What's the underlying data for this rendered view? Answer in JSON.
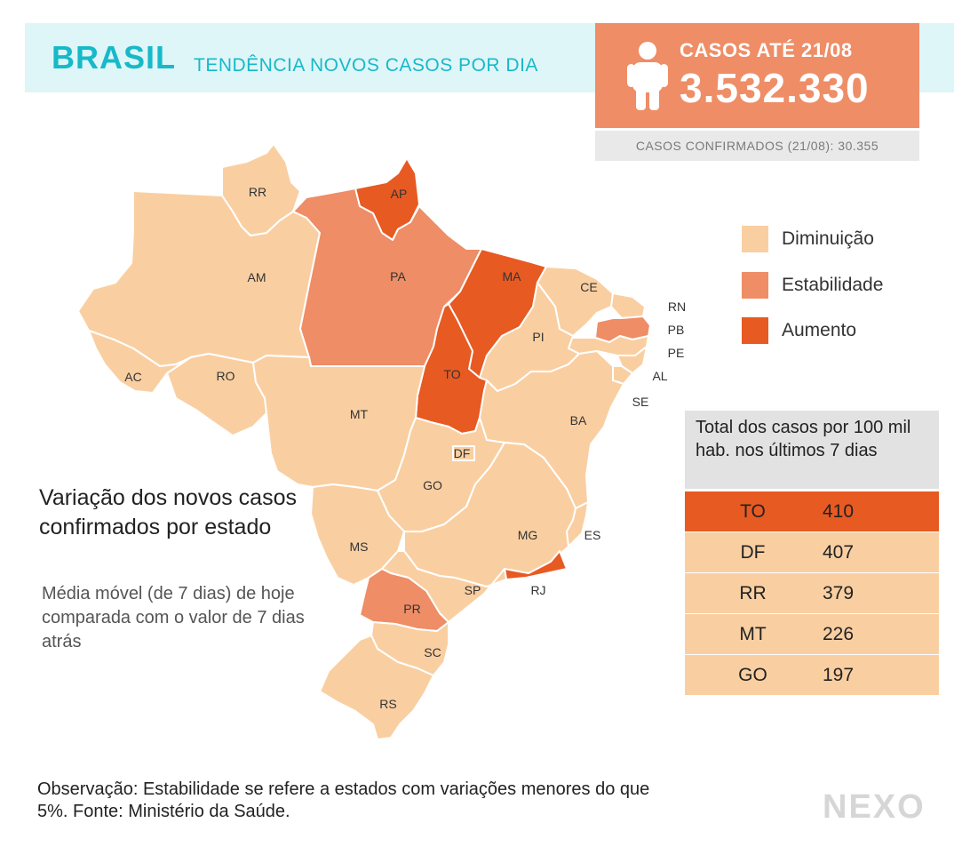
{
  "header": {
    "brand": "BRASIL",
    "subtitle": "TENDÊNCIA NOVOS CASOS POR DIA",
    "cases_label": "CASOS ATÉ 21/08",
    "cases_value": "3.532.330",
    "confirmed_text": "CASOS CONFIRMADOS (21/08): 30.355"
  },
  "colors": {
    "diminuicao": "#f9cfa2",
    "estabilidade": "#ee8d66",
    "aumento": "#e75a22",
    "header_band": "#dff6f8",
    "brand": "#17b9c9",
    "border": "#ffffff"
  },
  "legend": [
    {
      "label": "Diminuição",
      "color": "#f9cfa2"
    },
    {
      "label": "Estabilidade",
      "color": "#ee8d66"
    },
    {
      "label": "Aumento",
      "color": "#e75a22"
    }
  ],
  "map": {
    "states": [
      {
        "uf": "RR",
        "status": "diminuicao"
      },
      {
        "uf": "AP",
        "status": "aumento"
      },
      {
        "uf": "AM",
        "status": "diminuicao"
      },
      {
        "uf": "PA",
        "status": "estabilidade"
      },
      {
        "uf": "MA",
        "status": "aumento"
      },
      {
        "uf": "CE",
        "status": "diminuicao"
      },
      {
        "uf": "RN",
        "status": "diminuicao"
      },
      {
        "uf": "PB",
        "status": "estabilidade"
      },
      {
        "uf": "PE",
        "status": "diminuicao"
      },
      {
        "uf": "AL",
        "status": "diminuicao"
      },
      {
        "uf": "SE",
        "status": "diminuicao"
      },
      {
        "uf": "PI",
        "status": "diminuicao"
      },
      {
        "uf": "AC",
        "status": "diminuicao"
      },
      {
        "uf": "RO",
        "status": "diminuicao"
      },
      {
        "uf": "TO",
        "status": "aumento"
      },
      {
        "uf": "MT",
        "status": "diminuicao"
      },
      {
        "uf": "BA",
        "status": "diminuicao"
      },
      {
        "uf": "DF",
        "status": "diminuicao"
      },
      {
        "uf": "GO",
        "status": "diminuicao"
      },
      {
        "uf": "MS",
        "status": "diminuicao"
      },
      {
        "uf": "MG",
        "status": "diminuicao"
      },
      {
        "uf": "ES",
        "status": "diminuicao"
      },
      {
        "uf": "SP",
        "status": "diminuicao"
      },
      {
        "uf": "RJ",
        "status": "aumento"
      },
      {
        "uf": "PR",
        "status": "estabilidade"
      },
      {
        "uf": "SC",
        "status": "diminuicao"
      },
      {
        "uf": "RS",
        "status": "diminuicao"
      }
    ]
  },
  "variation": {
    "title": "Variação dos novos casos confirmados por estado",
    "description": "Média móvel (de 7 dias) de hoje comparada com o valor de 7 dias atrás"
  },
  "table": {
    "header": "Total dos casos por 100 mil hab. nos últimos 7 dias",
    "rows": [
      {
        "uf": "TO",
        "value": "410",
        "color": "#e75a22"
      },
      {
        "uf": "DF",
        "value": "407",
        "color": "#f9cfa2"
      },
      {
        "uf": "RR",
        "value": "379",
        "color": "#f9cfa2"
      },
      {
        "uf": "MT",
        "value": "226",
        "color": "#f9cfa2"
      },
      {
        "uf": "GO",
        "value": "197",
        "color": "#f9cfa2"
      }
    ]
  },
  "note": "Observação: Estabilidade se refere a estados com variações menores do que 5%. Fonte: Ministério da Saúde.",
  "logo": "NEXO"
}
